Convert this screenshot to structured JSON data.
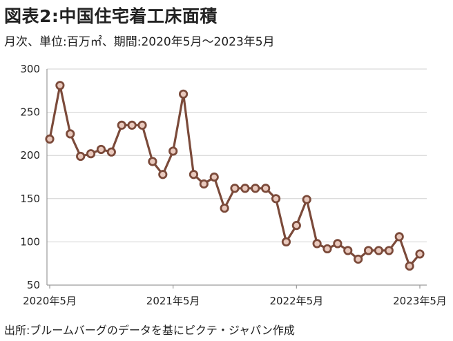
{
  "title": "図表2:中国住宅着工床面積",
  "subtitle": "月次、単位:百万㎡、期間:2020年5月～2023年5月",
  "source": "出所:ブルームバーグのデータを基にピクテ・ジャパン作成",
  "colors": {
    "line": "#7b4a3a",
    "marker_fill": "#e9c9bd",
    "grid": "#d0d0d0",
    "axis": "#9a9a9a"
  },
  "chart_data": {
    "type": "line",
    "title": "図表2:中国住宅着工床面積",
    "ylabel": "",
    "xlabel": "",
    "ylim": [
      50,
      300
    ],
    "yticks": [
      50,
      100,
      150,
      200,
      250,
      300
    ],
    "xtick_labels": [
      "2020年5月",
      "2021年5月",
      "2022年5月",
      "2023年5月"
    ],
    "xtick_indices": [
      0,
      12,
      24,
      36
    ],
    "grid": true,
    "x": [
      "2020-05",
      "2020-06",
      "2020-07",
      "2020-08",
      "2020-09",
      "2020-10",
      "2020-11",
      "2020-12",
      "2021-01",
      "2021-02",
      "2021-03",
      "2021-04",
      "2021-05",
      "2021-06",
      "2021-07",
      "2021-08",
      "2021-09",
      "2021-10",
      "2021-11",
      "2021-12",
      "2022-01",
      "2022-02",
      "2022-03",
      "2022-04",
      "2022-05",
      "2022-06",
      "2022-07",
      "2022-08",
      "2022-09",
      "2022-10",
      "2022-11",
      "2022-12",
      "2023-01",
      "2023-02",
      "2023-03",
      "2023-04",
      "2023-05"
    ],
    "series": [
      {
        "values": [
          219,
          281,
          225,
          199,
          202,
          207,
          204,
          235,
          235,
          235,
          193,
          178,
          205,
          271,
          178,
          167,
          175,
          139,
          162,
          162,
          162,
          162,
          150,
          100,
          119,
          149,
          98,
          92,
          98,
          90,
          80,
          90,
          90,
          90,
          106,
          72,
          86
        ]
      }
    ]
  }
}
